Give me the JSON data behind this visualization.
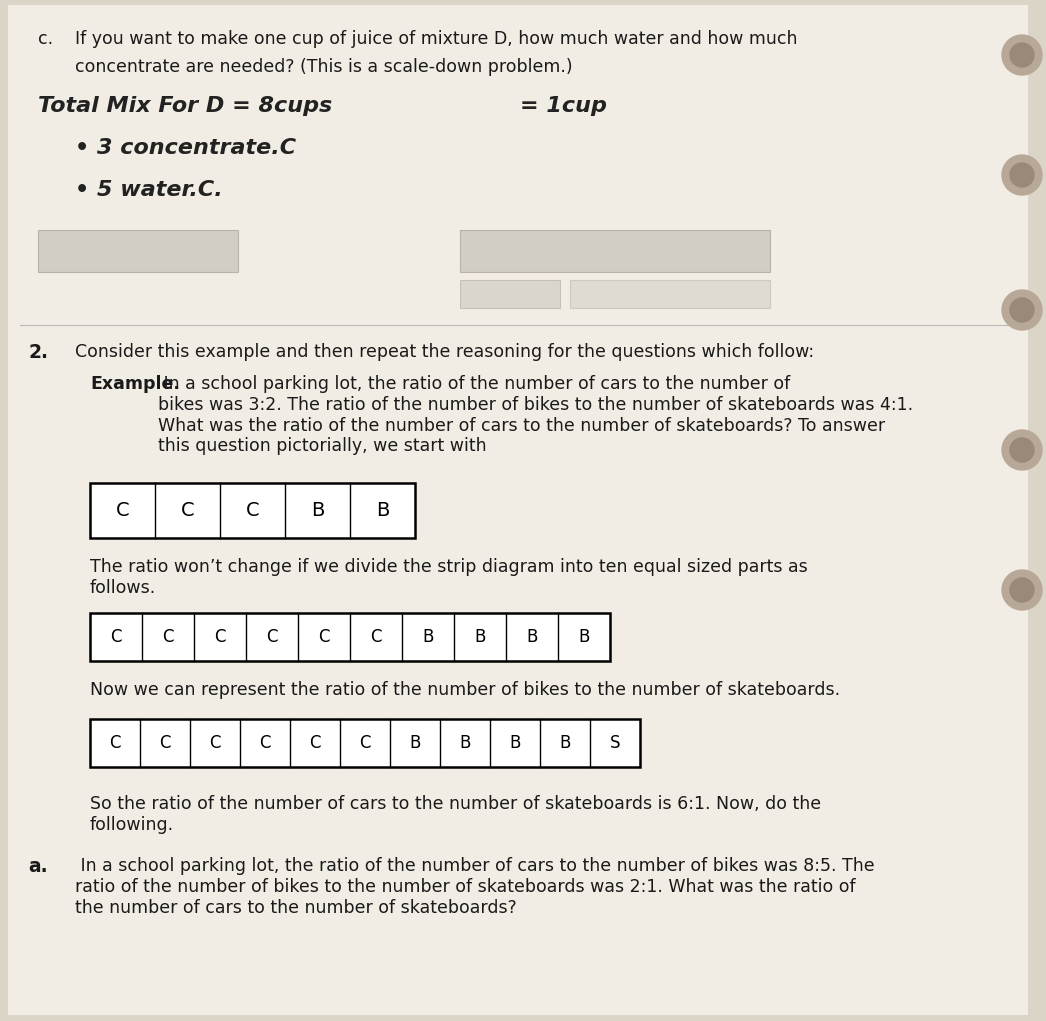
{
  "bg_color": "#dbd5c8",
  "page_color": "#f2ede4",
  "text_color": "#1a1a1a",
  "top_label": "c.",
  "line1": "If you want to make one cup of juice of mixture D, how much water and how much",
  "line2": "concentrate are needed? (This is a scale-down problem.)",
  "hw1": "Total Mix For D = 8cups",
  "hw_right": "= 1cup",
  "hw2": "• 3 concentrate.C",
  "hw3": "• 5 water.C.",
  "section2_num": "2.",
  "section2_intro": "Consider this example and then repeat the reasoning for the questions which follow:",
  "ex_bold": "Example.",
  "ex_rest": " In a school parking lot, the ratio of the number of cars to the number of\nbikes was 3:2. The ratio of the number of bikes to the number of skateboards was 4:1.\nWhat was the ratio of the number of cars to the number of skateboards? To answer\nthis question pictorially, we start with",
  "strip1": [
    "C",
    "C",
    "C",
    "B",
    "B"
  ],
  "text2": "The ratio won’t change if we divide the strip diagram into ten equal sized parts as\nfollows.",
  "strip2": [
    "C",
    "C",
    "C",
    "C",
    "C",
    "C",
    "B",
    "B",
    "B",
    "B"
  ],
  "text3": "Now we can represent the ratio of the number of bikes to the number of skateboards.",
  "strip3": [
    "C",
    "C",
    "C",
    "C",
    "C",
    "C",
    "B",
    "B",
    "B",
    "B",
    "S"
  ],
  "text4": "So the ratio of the number of cars to the number of skateboards is 6:1. Now, do the\nfollowing.",
  "part_a_num": "a.",
  "part_a_text": " In a school parking lot, the ratio of the number of cars to the number of bikes was 8:5. The\nratio of the number of bikes to the number of skateboards was 2:1. What was the ratio of\nthe number of cars to the number of skateboards?",
  "hole_color": "#b8a898",
  "gray_box_color": "#c5c0b8",
  "line_color": "#999999"
}
